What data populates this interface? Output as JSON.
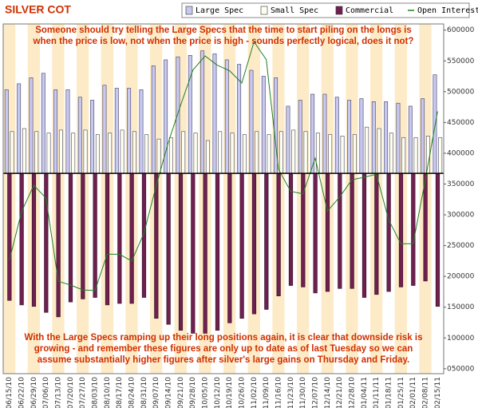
{
  "chart_data": {
    "type": "bar",
    "title": "SILVER COT",
    "annotations": [
      "Someone should try telling the Large Specs that the time to start piling on the longs is",
      "when the price is low, not when the price is high - sounds perfectly logical, does it not?",
      "With the Large Specs ramping up their long positions again, it is clear that downside risk is",
      "growing - and remember these figures are only up to date as of last Tuesday so we can",
      "assume substantially higher figures after silver's large gains on Thursday and Friday."
    ],
    "categories": [
      "06/15/10",
      "06/22/10",
      "06/29/10",
      "07/06/10",
      "07/13/10",
      "07/20/10",
      "07/27/10",
      "08/03/10",
      "08/10/10",
      "08/17/10",
      "08/24/10",
      "08/31/10",
      "09/07/10",
      "09/14/10",
      "09/21/10",
      "09/28/10",
      "10/05/10",
      "10/12/10",
      "10/19/10",
      "10/26/10",
      "11/02/10",
      "11/09/10",
      "11/16/10",
      "11/23/10",
      "11/30/10",
      "12/07/10",
      "12/14/10",
      "12/21/10",
      "12/28/10",
      "01/04/11",
      "01/11/11",
      "01/18/11",
      "01/25/11",
      "02/01/11",
      "02/08/11",
      "02/15/11"
    ],
    "ylim": [
      -134,
      100
    ],
    "y2lim": [
      42000,
      610000
    ],
    "y2ticks": [
      {
        "value": 600000,
        "label": "600000"
      },
      {
        "value": 550000,
        "label": "550000"
      },
      {
        "value": 500000,
        "label": "500000"
      },
      {
        "value": 450000,
        "label": "450000"
      },
      {
        "value": 400000,
        "label": "400000"
      },
      {
        "value": 350000,
        "label": "350000"
      },
      {
        "value": 300000,
        "label": "300000"
      },
      {
        "value": 250000,
        "label": "250000"
      },
      {
        "value": 200000,
        "label": "200000"
      },
      {
        "value": 150000,
        "label": "150000"
      },
      {
        "value": 100000,
        "label": "100000"
      },
      {
        "value": 50000,
        "label": "050000"
      }
    ],
    "series": [
      {
        "name": "Large Spec",
        "color": "#c8c8f0",
        "values": [
          56,
          60,
          64,
          67,
          56,
          56,
          51,
          49,
          59,
          57,
          57,
          56,
          72,
          76,
          78,
          79,
          82,
          80,
          76,
          73,
          69,
          65,
          64,
          45,
          49,
          53,
          53,
          51,
          49,
          50,
          48,
          48,
          47,
          45,
          50,
          66
        ]
      },
      {
        "name": "Small Spec",
        "color": "#fffff0",
        "values": [
          28,
          30,
          28,
          27,
          29,
          27,
          29,
          26,
          27,
          29,
          28,
          26,
          23,
          24,
          28,
          27,
          22,
          28,
          27,
          26,
          28,
          26,
          28,
          29,
          28,
          27,
          26,
          25,
          26,
          31,
          30,
          27,
          24,
          24,
          25,
          24
        ]
      },
      {
        "name": "Commercial",
        "color": "#702050",
        "values": [
          -85,
          -88,
          -89,
          -93,
          -96,
          -86,
          -84,
          -83,
          -88,
          -87,
          -87,
          -83,
          -97,
          -101,
          -105,
          -107,
          -107,
          -105,
          -100,
          -97,
          -94,
          -91,
          -82,
          -75,
          -76,
          -80,
          -79,
          -77,
          -77,
          -83,
          -81,
          -79,
          -76,
          -75,
          -72,
          -89
        ]
      },
      {
        "name": "Open Interest",
        "color": "#208020",
        "type": "line",
        "axis": "y2",
        "values": [
          226000,
          305000,
          348000,
          327000,
          192000,
          186000,
          178000,
          177000,
          236000,
          236000,
          225000,
          270000,
          347000,
          418000,
          478000,
          535000,
          558000,
          543000,
          534000,
          514000,
          581000,
          552000,
          374000,
          338000,
          334000,
          392000,
          306000,
          329000,
          357000,
          361000,
          366000,
          292000,
          253000,
          253000,
          357000,
          468000
        ]
      }
    ]
  }
}
